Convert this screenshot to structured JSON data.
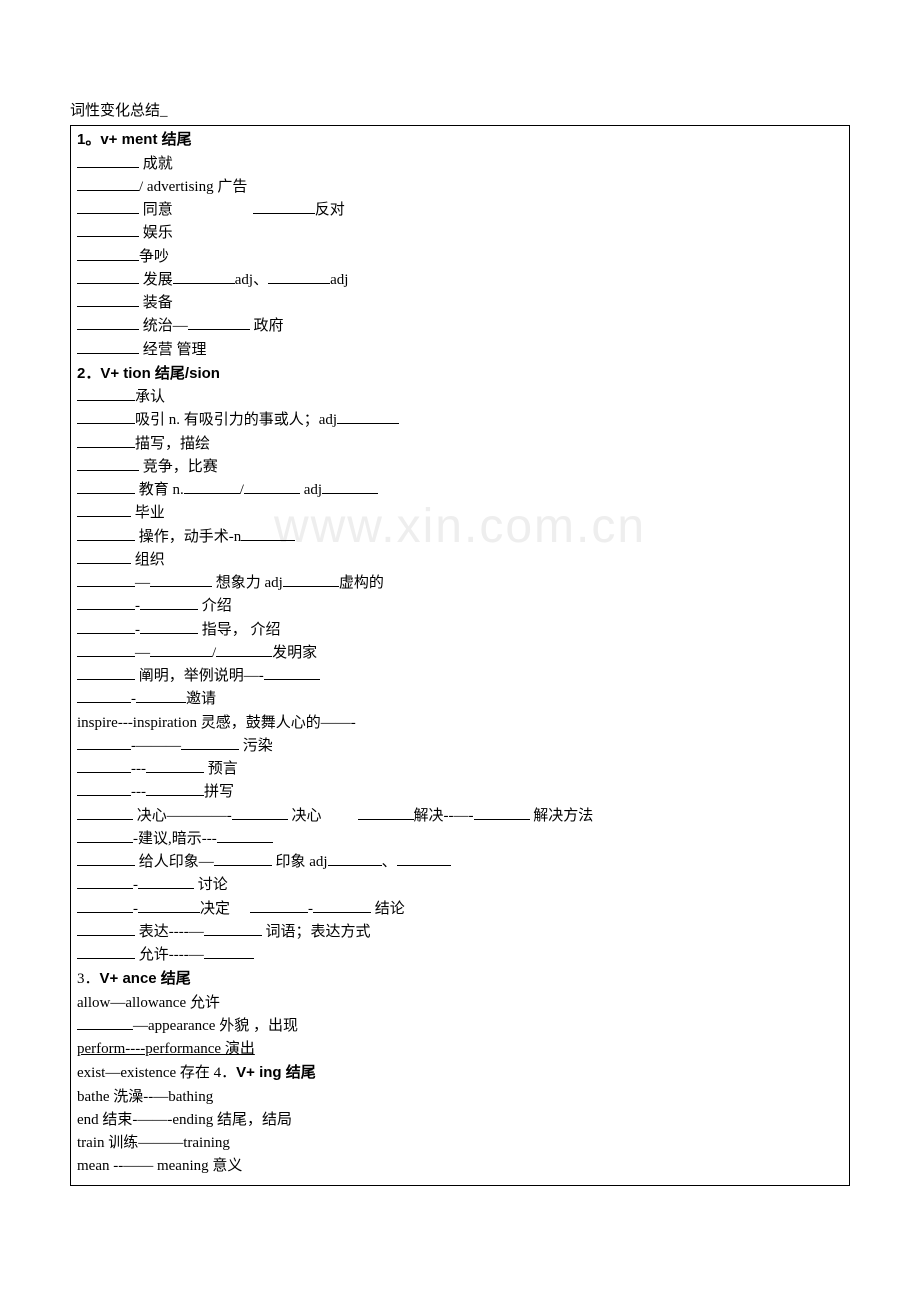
{
  "outside_title": "词性变化总结_",
  "watermark": "www.xin.com.cn",
  "blank_widths": {
    "short": 58,
    "med": 62,
    "long": 70
  },
  "sections": [
    {
      "type": "header",
      "text": "1。v+ ment  结尾",
      "bold": true
    },
    {
      "type": "row",
      "parts": [
        {
          "blank": 62
        },
        {
          "text": "  成就"
        }
      ]
    },
    {
      "type": "row",
      "parts": [
        {
          "blank": 62
        },
        {
          "text": "/ advertising  广告",
          "eng_partial": true
        }
      ]
    },
    {
      "type": "row",
      "parts": [
        {
          "blank": 62
        },
        {
          "text": "   同意"
        },
        {
          "spacer": 80
        },
        {
          "blank": 62
        },
        {
          "text": "反对"
        }
      ]
    },
    {
      "type": "row",
      "parts": [
        {
          "blank": 62
        },
        {
          "text": "  娱乐"
        }
      ]
    },
    {
      "type": "row",
      "parts": [
        {
          "blank": 62
        },
        {
          "text": "争吵"
        }
      ]
    },
    {
      "type": "row",
      "parts": [
        {
          "blank": 62
        },
        {
          "text": "   发展"
        },
        {
          "blank": 62
        },
        {
          "text": "adj、",
          "eng": true
        },
        {
          "blank": 62
        },
        {
          "text": "adj",
          "eng": true
        }
      ]
    },
    {
      "type": "row",
      "parts": [
        {
          "blank": 62
        },
        {
          "text": "  装备"
        }
      ]
    },
    {
      "type": "row",
      "parts": [
        {
          "blank": 62
        },
        {
          "text": "  统治—"
        },
        {
          "blank": 62
        },
        {
          "text": "  政府"
        }
      ]
    },
    {
      "type": "row",
      "parts": [
        {
          "blank": 62
        },
        {
          "text": "  经营 管理"
        }
      ]
    },
    {
      "type": "header",
      "text": "2．V+ tion  结尾/sion",
      "bold": true
    },
    {
      "type": "row",
      "parts": [
        {
          "blank": 58
        },
        {
          "text": "承认"
        }
      ]
    },
    {
      "type": "row",
      "parts": [
        {
          "blank": 58
        },
        {
          "text": "吸引    n.  有吸引力的事或人；adj",
          "eng_partial": true
        },
        {
          "blank": 62
        }
      ]
    },
    {
      "type": "row",
      "parts": [
        {
          "blank": 58
        },
        {
          "text": "描写，描绘"
        }
      ]
    },
    {
      "type": "row",
      "parts": [
        {
          "blank": 62
        },
        {
          "text": "  竞争，比赛"
        }
      ]
    },
    {
      "type": "row",
      "parts": [
        {
          "blank": 58
        },
        {
          "text": "  教育    n.",
          "eng_partial": true
        },
        {
          "blank": 56
        },
        {
          "text": "/"
        },
        {
          "blank": 56
        },
        {
          "text": "  adj",
          "eng": true
        },
        {
          "blank": 56
        }
      ]
    },
    {
      "type": "row",
      "parts": [
        {
          "blank": 54
        },
        {
          "text": "  毕业"
        }
      ]
    },
    {
      "type": "row",
      "parts": [
        {
          "blank": 58
        },
        {
          "text": "  操作，动手术-n",
          "eng_partial": true
        },
        {
          "blank": 54
        }
      ]
    },
    {
      "type": "row",
      "parts": [
        {
          "blank": 54
        },
        {
          "text": "  组织"
        }
      ]
    },
    {
      "type": "row",
      "parts": [
        {
          "blank": 58
        },
        {
          "text": "—"
        },
        {
          "blank": 62
        },
        {
          "text": "  想象力   adj",
          "eng_partial": true
        },
        {
          "blank": 56
        },
        {
          "text": "虚构的"
        }
      ]
    },
    {
      "type": "row",
      "parts": [
        {
          "blank": 58
        },
        {
          "text": "-"
        },
        {
          "blank": 58
        },
        {
          "text": "  介绍"
        }
      ]
    },
    {
      "type": "row",
      "parts": [
        {
          "blank": 58
        },
        {
          "text": "-"
        },
        {
          "blank": 58
        },
        {
          "text": "  指导， 介绍"
        }
      ]
    },
    {
      "type": "row",
      "parts": [
        {
          "blank": 58
        },
        {
          "text": "—"
        },
        {
          "blank": 62
        },
        {
          "text": "/"
        },
        {
          "blank": 56
        },
        {
          "text": "发明家"
        }
      ]
    },
    {
      "type": "row",
      "parts": [
        {
          "blank": 58
        },
        {
          "text": "  阐明，举例说明—-"
        },
        {
          "blank": 56
        }
      ]
    },
    {
      "type": "row",
      "parts": [
        {
          "blank": 54
        },
        {
          "text": "-"
        },
        {
          "blank": 50
        },
        {
          "text": "邀请"
        }
      ]
    },
    {
      "type": "row",
      "parts": [
        {
          "text": "inspire---inspiration  灵感，鼓舞人心的——-",
          "eng_partial": true
        }
      ]
    },
    {
      "type": "row",
      "parts": [
        {
          "blank": 54
        },
        {
          "text": "-———"
        },
        {
          "blank": 58
        },
        {
          "text": "  污染"
        }
      ]
    },
    {
      "type": "row",
      "parts": [
        {
          "blank": 54
        },
        {
          "text": "---"
        },
        {
          "blank": 58
        },
        {
          "text": "  预言"
        }
      ]
    },
    {
      "type": "row",
      "parts": [
        {
          "blank": 54
        },
        {
          "text": "---"
        },
        {
          "blank": 58
        },
        {
          "text": "拼写"
        }
      ]
    },
    {
      "type": "row",
      "parts": [
        {
          "blank": 56
        },
        {
          "text": "  决心————-"
        },
        {
          "blank": 56
        },
        {
          "text": "  决心"
        },
        {
          "spacer": 36
        },
        {
          "blank": 56
        },
        {
          "text": "解决--—-"
        },
        {
          "blank": 56
        },
        {
          "text": "  解决方法"
        }
      ]
    },
    {
      "type": "row",
      "parts": [
        {
          "blank": 56
        },
        {
          "text": "-建议,暗示---"
        },
        {
          "blank": 56
        }
      ]
    },
    {
      "type": "row",
      "parts": [
        {
          "blank": 58
        },
        {
          "text": "  给人印象—"
        },
        {
          "blank": 58
        },
        {
          "text": "  印象 adj",
          "eng_partial": true
        },
        {
          "blank": 54
        },
        {
          "text": "、"
        },
        {
          "blank": 54
        }
      ]
    },
    {
      "type": "row",
      "parts": [
        {
          "text": " "
        }
      ]
    },
    {
      "type": "row",
      "parts": [
        {
          "blank": 56
        },
        {
          "text": "-"
        },
        {
          "blank": 56
        },
        {
          "text": "  讨论"
        }
      ]
    },
    {
      "type": "row",
      "parts": [
        {
          "blank": 56
        },
        {
          "text": "-"
        },
        {
          "blank": 62
        },
        {
          "text": "决定"
        },
        {
          "spacer": 20
        },
        {
          "blank": 58
        },
        {
          "text": "-"
        },
        {
          "blank": 58
        },
        {
          "text": "  结论"
        }
      ]
    },
    {
      "type": "row",
      "parts": [
        {
          "blank": 58
        },
        {
          "text": "  表达----—"
        },
        {
          "blank": 58
        },
        {
          "text": "  词语；表达方式"
        }
      ]
    },
    {
      "type": "row",
      "parts": [
        {
          "blank": 58
        },
        {
          "text": "  允许----—"
        },
        {
          "blank": 50
        }
      ]
    },
    {
      "type": "row",
      "parts": [
        {
          "text": "3．",
          "plain": true
        },
        {
          "text": "V+ ance  结尾",
          "bold": true
        }
      ]
    },
    {
      "type": "row",
      "parts": [
        {
          "text": "allow—allowance  允许",
          "eng_partial": true
        }
      ]
    },
    {
      "type": "row",
      "parts": [
        {
          "blank": 56
        },
        {
          "text": "—appearance  外貌 ，出现",
          "eng_partial": true
        }
      ]
    },
    {
      "type": "row",
      "parts": [
        {
          "text": "perform----performance  演出",
          "eng_partial": true,
          "underline": true
        }
      ]
    },
    {
      "type": "row",
      "parts": [
        {
          "text": "exist—existence  存在 4．",
          "eng_partial": true
        },
        {
          "text": "V+ ing  结尾",
          "bold": true
        }
      ]
    },
    {
      "type": "row",
      "parts": [
        {
          "text": "bathe  洗澡--—bathing",
          "eng_partial": true
        }
      ]
    },
    {
      "type": "row",
      "parts": [
        {
          "text": "end  结束-——-ending  结尾，结局",
          "eng_partial": true
        }
      ]
    },
    {
      "type": "row",
      "parts": [
        {
          "text": "train  训练———training",
          "eng_partial": true
        }
      ]
    },
    {
      "type": "row",
      "parts": [
        {
          "text": "mean --—— meaning  意义",
          "eng_partial": true
        }
      ]
    }
  ]
}
